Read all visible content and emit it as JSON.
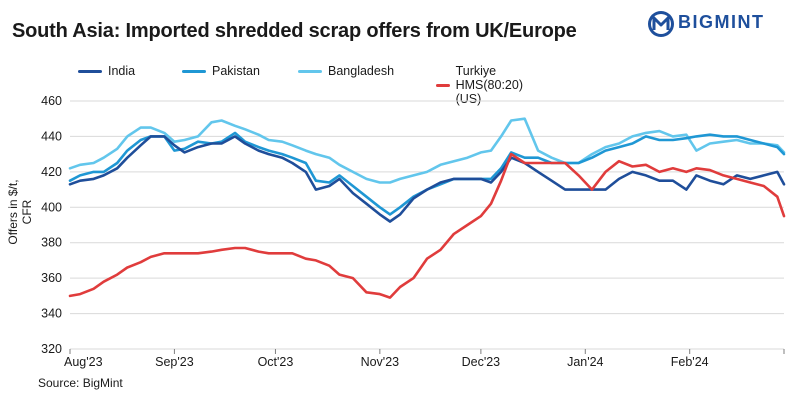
{
  "header": {
    "title": "South Asia: Imported shredded scrap offers from UK/Europe",
    "brand": "BIGMINT"
  },
  "footer": {
    "source": "Source: BigMint"
  },
  "colors": {
    "India": "#1f4e9a",
    "Pakistan": "#1f97d4",
    "Bangladesh": "#62c6ec",
    "Turkiye HMS(80:20)(US)": "#e03c3c",
    "grid": "#d9d9d9",
    "brand": "#1e4f9c"
  },
  "chart_data": {
    "type": "line",
    "title": "South Asia: Imported shredded scrap offers from UK/Europe",
    "xlabel": "",
    "ylabel": "Offers in $/t, CFR",
    "ylim": [
      320,
      460
    ],
    "yticks": [
      320,
      340,
      360,
      380,
      400,
      420,
      440,
      460
    ],
    "x_ticks": [
      "Aug'23",
      "Sep'23",
      "Oct'23",
      "Nov'23",
      "Dec'23",
      "Jan'24",
      "Feb'24"
    ],
    "x_range_note_days_from_aug1": [
      0,
      212
    ],
    "grid": true,
    "legend_position": "top",
    "series": [
      {
        "name": "India",
        "points": [
          [
            "2023-08-01",
            413
          ],
          [
            "2023-08-04",
            415
          ],
          [
            "2023-08-08",
            416
          ],
          [
            "2023-08-11",
            418
          ],
          [
            "2023-08-15",
            422
          ],
          [
            "2023-08-18",
            428
          ],
          [
            "2023-08-22",
            435
          ],
          [
            "2023-08-25",
            440
          ],
          [
            "2023-08-29",
            440
          ],
          [
            "2023-09-01",
            435
          ],
          [
            "2023-09-04",
            431
          ],
          [
            "2023-09-08",
            434
          ],
          [
            "2023-09-12",
            436
          ],
          [
            "2023-09-15",
            436
          ],
          [
            "2023-09-19",
            440
          ],
          [
            "2023-09-22",
            436
          ],
          [
            "2023-09-26",
            432
          ],
          [
            "2023-09-29",
            430
          ],
          [
            "2023-10-03",
            428
          ],
          [
            "2023-10-06",
            425
          ],
          [
            "2023-10-10",
            420
          ],
          [
            "2023-10-13",
            410
          ],
          [
            "2023-10-17",
            412
          ],
          [
            "2023-10-20",
            416
          ],
          [
            "2023-10-24",
            408
          ],
          [
            "2023-10-28",
            402
          ],
          [
            "2023-11-01",
            396
          ],
          [
            "2023-11-04",
            392
          ],
          [
            "2023-11-07",
            396
          ],
          [
            "2023-11-11",
            405
          ],
          [
            "2023-11-15",
            410
          ],
          [
            "2023-11-19",
            414
          ],
          [
            "2023-11-23",
            416
          ],
          [
            "2023-11-27",
            416
          ],
          [
            "2023-12-01",
            416
          ],
          [
            "2023-12-04",
            414
          ],
          [
            "2023-12-07",
            420
          ],
          [
            "2023-12-10",
            428
          ],
          [
            "2023-12-14",
            425
          ],
          [
            "2023-12-18",
            420
          ],
          [
            "2023-12-22",
            415
          ],
          [
            "2023-12-26",
            410
          ],
          [
            "2023-12-30",
            410
          ],
          [
            "2024-01-03",
            410
          ],
          [
            "2024-01-07",
            410
          ],
          [
            "2024-01-11",
            416
          ],
          [
            "2024-01-15",
            420
          ],
          [
            "2024-01-19",
            418
          ],
          [
            "2024-01-23",
            415
          ],
          [
            "2024-01-27",
            415
          ],
          [
            "2024-01-31",
            410
          ],
          [
            "2024-02-03",
            418
          ],
          [
            "2024-02-07",
            415
          ],
          [
            "2024-02-11",
            413
          ],
          [
            "2024-02-15",
            418
          ],
          [
            "2024-02-19",
            416
          ],
          [
            "2024-02-23",
            418
          ],
          [
            "2024-02-27",
            420
          ],
          [
            "2024-02-29",
            413
          ]
        ]
      },
      {
        "name": "Pakistan",
        "points": [
          [
            "2023-08-01",
            415
          ],
          [
            "2023-08-04",
            418
          ],
          [
            "2023-08-08",
            420
          ],
          [
            "2023-08-11",
            420
          ],
          [
            "2023-08-15",
            425
          ],
          [
            "2023-08-18",
            432
          ],
          [
            "2023-08-22",
            438
          ],
          [
            "2023-08-25",
            440
          ],
          [
            "2023-08-29",
            440
          ],
          [
            "2023-09-01",
            432
          ],
          [
            "2023-09-04",
            433
          ],
          [
            "2023-09-08",
            437
          ],
          [
            "2023-09-12",
            436
          ],
          [
            "2023-09-15",
            437
          ],
          [
            "2023-09-19",
            442
          ],
          [
            "2023-09-22",
            437
          ],
          [
            "2023-09-26",
            434
          ],
          [
            "2023-09-29",
            432
          ],
          [
            "2023-10-03",
            430
          ],
          [
            "2023-10-06",
            428
          ],
          [
            "2023-10-10",
            425
          ],
          [
            "2023-10-13",
            415
          ],
          [
            "2023-10-17",
            414
          ],
          [
            "2023-10-20",
            418
          ],
          [
            "2023-10-24",
            412
          ],
          [
            "2023-10-28",
            406
          ],
          [
            "2023-11-01",
            400
          ],
          [
            "2023-11-04",
            396
          ],
          [
            "2023-11-07",
            400
          ],
          [
            "2023-11-11",
            406
          ],
          [
            "2023-11-15",
            410
          ],
          [
            "2023-11-19",
            413
          ],
          [
            "2023-11-23",
            416
          ],
          [
            "2023-11-27",
            416
          ],
          [
            "2023-12-01",
            416
          ],
          [
            "2023-12-04",
            416
          ],
          [
            "2023-12-07",
            422
          ],
          [
            "2023-12-10",
            431
          ],
          [
            "2023-12-14",
            428
          ],
          [
            "2023-12-18",
            428
          ],
          [
            "2023-12-22",
            425
          ],
          [
            "2023-12-26",
            425
          ],
          [
            "2023-12-30",
            425
          ],
          [
            "2024-01-03",
            428
          ],
          [
            "2024-01-07",
            432
          ],
          [
            "2024-01-11",
            434
          ],
          [
            "2024-01-15",
            436
          ],
          [
            "2024-01-19",
            440
          ],
          [
            "2024-01-23",
            438
          ],
          [
            "2024-01-27",
            438
          ],
          [
            "2024-01-31",
            439
          ],
          [
            "2024-02-03",
            440
          ],
          [
            "2024-02-07",
            441
          ],
          [
            "2024-02-11",
            440
          ],
          [
            "2024-02-15",
            440
          ],
          [
            "2024-02-19",
            438
          ],
          [
            "2024-02-23",
            436
          ],
          [
            "2024-02-27",
            434
          ],
          [
            "2024-02-29",
            430
          ]
        ]
      },
      {
        "name": "Bangladesh",
        "points": [
          [
            "2023-08-01",
            422
          ],
          [
            "2023-08-04",
            424
          ],
          [
            "2023-08-08",
            425
          ],
          [
            "2023-08-11",
            428
          ],
          [
            "2023-08-15",
            433
          ],
          [
            "2023-08-18",
            440
          ],
          [
            "2023-08-22",
            445
          ],
          [
            "2023-08-25",
            445
          ],
          [
            "2023-08-29",
            442
          ],
          [
            "2023-09-01",
            437
          ],
          [
            "2023-09-04",
            438
          ],
          [
            "2023-09-08",
            440
          ],
          [
            "2023-09-12",
            448
          ],
          [
            "2023-09-15",
            449
          ],
          [
            "2023-09-19",
            446
          ],
          [
            "2023-09-22",
            444
          ],
          [
            "2023-09-26",
            441
          ],
          [
            "2023-09-29",
            438
          ],
          [
            "2023-10-03",
            437
          ],
          [
            "2023-10-06",
            435
          ],
          [
            "2023-10-10",
            432
          ],
          [
            "2023-10-13",
            430
          ],
          [
            "2023-10-17",
            428
          ],
          [
            "2023-10-20",
            424
          ],
          [
            "2023-10-24",
            420
          ],
          [
            "2023-10-28",
            416
          ],
          [
            "2023-11-01",
            414
          ],
          [
            "2023-11-04",
            414
          ],
          [
            "2023-11-07",
            416
          ],
          [
            "2023-11-11",
            418
          ],
          [
            "2023-11-15",
            420
          ],
          [
            "2023-11-19",
            424
          ],
          [
            "2023-11-23",
            426
          ],
          [
            "2023-11-27",
            428
          ],
          [
            "2023-12-01",
            431
          ],
          [
            "2023-12-04",
            432
          ],
          [
            "2023-12-07",
            440
          ],
          [
            "2023-12-10",
            449
          ],
          [
            "2023-12-14",
            450
          ],
          [
            "2023-12-18",
            432
          ],
          [
            "2023-12-22",
            428
          ],
          [
            "2023-12-26",
            425
          ],
          [
            "2023-12-30",
            425
          ],
          [
            "2024-01-03",
            430
          ],
          [
            "2024-01-07",
            434
          ],
          [
            "2024-01-11",
            436
          ],
          [
            "2024-01-15",
            440
          ],
          [
            "2024-01-19",
            442
          ],
          [
            "2024-01-23",
            443
          ],
          [
            "2024-01-27",
            440
          ],
          [
            "2024-01-31",
            441
          ],
          [
            "2024-02-03",
            432
          ],
          [
            "2024-02-07",
            436
          ],
          [
            "2024-02-11",
            437
          ],
          [
            "2024-02-15",
            438
          ],
          [
            "2024-02-19",
            436
          ],
          [
            "2024-02-23",
            436
          ],
          [
            "2024-02-27",
            435
          ],
          [
            "2024-02-29",
            431
          ]
        ]
      },
      {
        "name": "Turkiye HMS(80:20)(US)",
        "points": [
          [
            "2023-08-01",
            350
          ],
          [
            "2023-08-04",
            351
          ],
          [
            "2023-08-08",
            354
          ],
          [
            "2023-08-11",
            358
          ],
          [
            "2023-08-15",
            362
          ],
          [
            "2023-08-18",
            366
          ],
          [
            "2023-08-22",
            369
          ],
          [
            "2023-08-25",
            372
          ],
          [
            "2023-08-29",
            374
          ],
          [
            "2023-09-01",
            374
          ],
          [
            "2023-09-04",
            374
          ],
          [
            "2023-09-08",
            374
          ],
          [
            "2023-09-12",
            375
          ],
          [
            "2023-09-15",
            376
          ],
          [
            "2023-09-19",
            377
          ],
          [
            "2023-09-22",
            377
          ],
          [
            "2023-09-26",
            375
          ],
          [
            "2023-09-29",
            374
          ],
          [
            "2023-10-03",
            374
          ],
          [
            "2023-10-06",
            374
          ],
          [
            "2023-10-10",
            371
          ],
          [
            "2023-10-13",
            370
          ],
          [
            "2023-10-17",
            367
          ],
          [
            "2023-10-20",
            362
          ],
          [
            "2023-10-24",
            360
          ],
          [
            "2023-10-28",
            352
          ],
          [
            "2023-11-01",
            351
          ],
          [
            "2023-11-04",
            349
          ],
          [
            "2023-11-07",
            355
          ],
          [
            "2023-11-11",
            360
          ],
          [
            "2023-11-15",
            371
          ],
          [
            "2023-11-19",
            376
          ],
          [
            "2023-11-23",
            385
          ],
          [
            "2023-11-27",
            390
          ],
          [
            "2023-12-01",
            395
          ],
          [
            "2023-12-04",
            402
          ],
          [
            "2023-12-07",
            415
          ],
          [
            "2023-12-10",
            430
          ],
          [
            "2023-12-14",
            425
          ],
          [
            "2023-12-18",
            425
          ],
          [
            "2023-12-22",
            425
          ],
          [
            "2023-12-26",
            425
          ],
          [
            "2023-12-30",
            418
          ],
          [
            "2024-01-03",
            410
          ],
          [
            "2024-01-07",
            420
          ],
          [
            "2024-01-11",
            426
          ],
          [
            "2024-01-15",
            423
          ],
          [
            "2024-01-19",
            424
          ],
          [
            "2024-01-23",
            420
          ],
          [
            "2024-01-27",
            422
          ],
          [
            "2024-01-31",
            420
          ],
          [
            "2024-02-03",
            422
          ],
          [
            "2024-02-07",
            421
          ],
          [
            "2024-02-11",
            418
          ],
          [
            "2024-02-15",
            416
          ],
          [
            "2024-02-19",
            414
          ],
          [
            "2024-02-23",
            412
          ],
          [
            "2024-02-27",
            406
          ],
          [
            "2024-02-29",
            395
          ]
        ]
      }
    ]
  }
}
